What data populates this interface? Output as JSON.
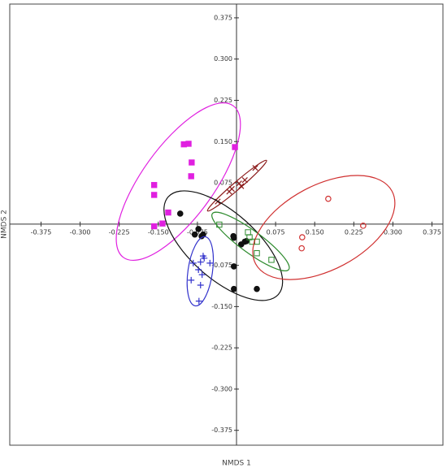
{
  "chart_data": {
    "type": "scatter",
    "x_label": "NMDS 1",
    "y_label": "NMDS 2",
    "xlim": [
      -0.435,
      0.396
    ],
    "ylim": [
      -0.402,
      0.4
    ],
    "xticks": [
      -0.375,
      {
        "value": -0.3,
        "label": "-0.300"
      },
      -0.225,
      {
        "value": -0.15,
        "label": "-0.150"
      },
      -0.075,
      0.075,
      {
        "value": 0.15,
        "label": "0.150"
      },
      0.225,
      {
        "value": 0.3,
        "label": "0.300"
      },
      0.375
    ],
    "yticks": [
      -0.375,
      {
        "value": -0.3,
        "label": "-0.300"
      },
      -0.225,
      {
        "value": -0.15,
        "label": "-0.150"
      },
      -0.075,
      0.075,
      {
        "value": 0.15,
        "label": "0.150"
      },
      0.225,
      {
        "value": 0.3,
        "label": "0.300"
      },
      0.375
    ],
    "series": [
      {
        "color": "#e020e0",
        "marker": "filled-square",
        "x": [
          -0.158,
          -0.158,
          -0.131,
          -0.142,
          -0.158,
          -0.087,
          -0.086,
          -0.101,
          -0.092,
          -0.003
        ],
        "y": [
          0.071,
          0.053,
          0.021,
          0.001,
          -0.004,
          0.087,
          0.112,
          0.145,
          0.146,
          0.14
        ]
      },
      {
        "color": "#8b1a1a",
        "marker": "cross",
        "x": [
          -0.036,
          -0.014,
          -0.009,
          0.005,
          0.009,
          0.016,
          0.036
        ],
        "y": [
          0.041,
          0.059,
          0.064,
          0.074,
          0.069,
          0.08,
          0.102
        ]
      },
      {
        "color": "#111111",
        "marker": "filled-circle",
        "x": [
          -0.108,
          -0.073,
          -0.08,
          -0.064,
          -0.067,
          -0.006,
          0.016,
          0.009,
          -0.005,
          0.019,
          -0.005,
          -0.005,
          0.039
        ],
        "y": [
          0.019,
          -0.009,
          -0.019,
          -0.019,
          -0.022,
          -0.022,
          -0.032,
          -0.037,
          -0.025,
          -0.031,
          -0.077,
          -0.118,
          -0.118
        ]
      },
      {
        "color": "#2e8b2e",
        "marker": "open-square",
        "x": [
          -0.033,
          0.022,
          0.025,
          0.03,
          0.039,
          0.039,
          0.067
        ],
        "y": [
          -0.001,
          -0.015,
          -0.024,
          -0.032,
          -0.032,
          -0.053,
          -0.065
        ]
      },
      {
        "color": "#3333cc",
        "marker": "plus",
        "x": [
          -0.064,
          -0.069,
          -0.083,
          -0.051,
          -0.087,
          -0.073,
          -0.069,
          -0.066,
          -0.072,
          -0.062
        ],
        "y": [
          -0.058,
          -0.069,
          -0.071,
          -0.071,
          -0.102,
          -0.083,
          -0.111,
          -0.092,
          -0.14,
          -0.062
        ]
      },
      {
        "color": "#d03030",
        "marker": "open-circle",
        "x": [
          0.176,
          0.243,
          0.126,
          0.125
        ],
        "y": [
          0.046,
          -0.003,
          -0.024,
          -0.044
        ]
      }
    ]
  }
}
